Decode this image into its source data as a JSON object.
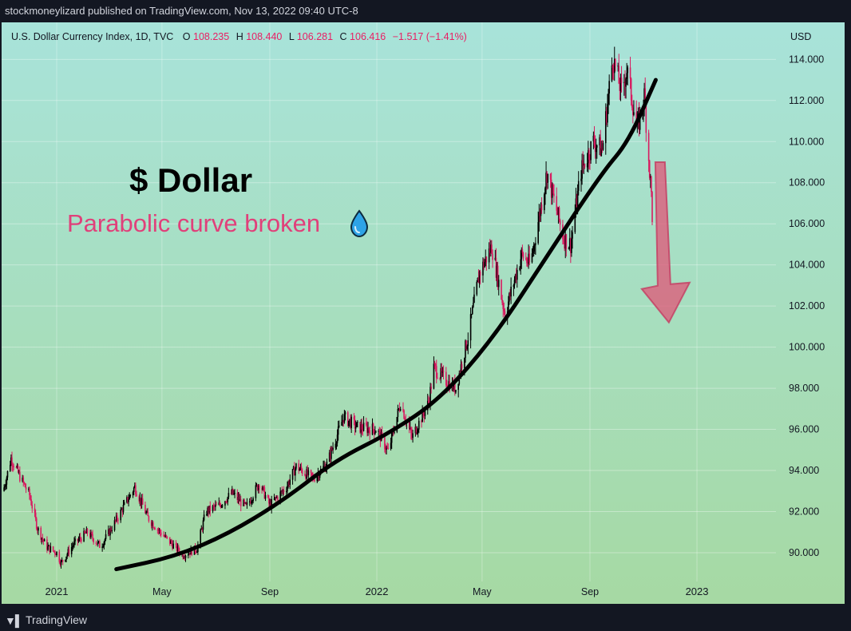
{
  "header": {
    "published": "stockmoneylizard published on TradingView.com, Nov 13, 2022 09:40 UTC-8"
  },
  "legend": {
    "symbol": "U.S. Dollar Currency Index, 1D, TVC",
    "o_label": "O",
    "o_value": "108.235",
    "h_label": "H",
    "h_value": "108.440",
    "l_label": "L",
    "l_value": "106.281",
    "c_label": "C",
    "c_value": "106.416",
    "change": "−1.517 (−1.41%)"
  },
  "axis": {
    "currency": "USD"
  },
  "annotations": {
    "title": "$ Dollar",
    "subtitle": "Parabolic curve broken",
    "drop_icon": "water-drop-icon",
    "arrow_icon": "down-arrow-icon"
  },
  "footer": {
    "brand": "TradingView",
    "logo_icon": "tradingview-logo-icon"
  },
  "colors": {
    "bg_top": "#a8e3da",
    "bg_bottom": "#a6d9a3",
    "candle_up": "#000000",
    "candle_down": "#d81b60",
    "price_text": "#e91e63",
    "subtitle": "#e0407a",
    "arrow": "#e05577",
    "curve": "#000000"
  },
  "chart_data": {
    "type": "candlestick",
    "title": "$ Dollar",
    "ylabel": "USD",
    "ylim": [
      88.6,
      115.8
    ],
    "yticks": [
      "114.000",
      "112.000",
      "110.000",
      "108.000",
      "106.000",
      "104.000",
      "102.000",
      "100.000",
      "98.000",
      "96.000",
      "94.000",
      "92.000",
      "90.000"
    ],
    "x_ticks": [
      "2021",
      "May",
      "Sep",
      "2022",
      "May",
      "Sep",
      "2023"
    ],
    "series": [
      {
        "name": "U.S. Dollar Currency Index",
        "points": [
          [
            "2020-11-01",
            93.0
          ],
          [
            "2020-11-10",
            94.6
          ],
          [
            "2020-11-20",
            93.7
          ],
          [
            "2020-12-01",
            92.8
          ],
          [
            "2020-12-10",
            91.2
          ],
          [
            "2020-12-20",
            90.3
          ],
          [
            "2021-01-01",
            90.0
          ],
          [
            "2021-01-06",
            89.5
          ],
          [
            "2021-01-20",
            90.4
          ],
          [
            "2021-02-05",
            91.0
          ],
          [
            "2021-02-20",
            90.3
          ],
          [
            "2021-03-10",
            91.6
          ],
          [
            "2021-03-31",
            93.2
          ],
          [
            "2021-04-15",
            91.7
          ],
          [
            "2021-05-01",
            90.9
          ],
          [
            "2021-05-25",
            89.9
          ],
          [
            "2021-06-10",
            90.2
          ],
          [
            "2021-06-20",
            92.0
          ],
          [
            "2021-07-05",
            92.3
          ],
          [
            "2021-07-20",
            92.9
          ],
          [
            "2021-08-05",
            92.2
          ],
          [
            "2021-08-20",
            93.4
          ],
          [
            "2021-09-01",
            92.3
          ],
          [
            "2021-09-20",
            93.2
          ],
          [
            "2021-10-01",
            94.2
          ],
          [
            "2021-10-20",
            93.6
          ],
          [
            "2021-11-05",
            94.3
          ],
          [
            "2021-11-24",
            96.6
          ],
          [
            "2021-12-10",
            96.1
          ],
          [
            "2022-01-01",
            96.0
          ],
          [
            "2022-01-14",
            94.9
          ],
          [
            "2022-01-28",
            97.3
          ],
          [
            "2022-02-10",
            95.6
          ],
          [
            "2022-03-01",
            97.3
          ],
          [
            "2022-03-07",
            99.0
          ],
          [
            "2022-03-20",
            98.4
          ],
          [
            "2022-04-01",
            98.0
          ],
          [
            "2022-04-15",
            100.5
          ],
          [
            "2022-04-28",
            103.6
          ],
          [
            "2022-05-12",
            104.9
          ],
          [
            "2022-05-27",
            101.6
          ],
          [
            "2022-06-15",
            104.5
          ],
          [
            "2022-06-25",
            104.0
          ],
          [
            "2022-07-14",
            108.5
          ],
          [
            "2022-08-02",
            105.3
          ],
          [
            "2022-08-10",
            105.0
          ],
          [
            "2022-08-22",
            108.6
          ],
          [
            "2022-09-05",
            110.0
          ],
          [
            "2022-09-15",
            109.6
          ],
          [
            "2022-09-27",
            114.1
          ],
          [
            "2022-10-07",
            112.4
          ],
          [
            "2022-10-13",
            113.5
          ],
          [
            "2022-10-25",
            110.6
          ],
          [
            "2022-11-02",
            112.2
          ],
          [
            "2022-11-10",
            107.4
          ],
          [
            "2022-11-11",
            106.4
          ]
        ]
      },
      {
        "name": "Parabolic curve",
        "points": [
          [
            "2021-03-10",
            89.2
          ],
          [
            "2021-05-15",
            89.8
          ],
          [
            "2021-07-15",
            90.9
          ],
          [
            "2021-09-15",
            92.5
          ],
          [
            "2021-11-15",
            94.5
          ],
          [
            "2022-01-15",
            95.8
          ],
          [
            "2022-03-15",
            97.5
          ],
          [
            "2022-05-15",
            100.5
          ],
          [
            "2022-07-15",
            104.5
          ],
          [
            "2022-09-15",
            108.5
          ],
          [
            "2022-10-15",
            110.0
          ],
          [
            "2022-11-15",
            113.0
          ]
        ]
      }
    ],
    "arrow": {
      "from": [
        "2022-11-20",
        109.0
      ],
      "to": [
        "2022-11-30",
        101.2
      ]
    }
  }
}
